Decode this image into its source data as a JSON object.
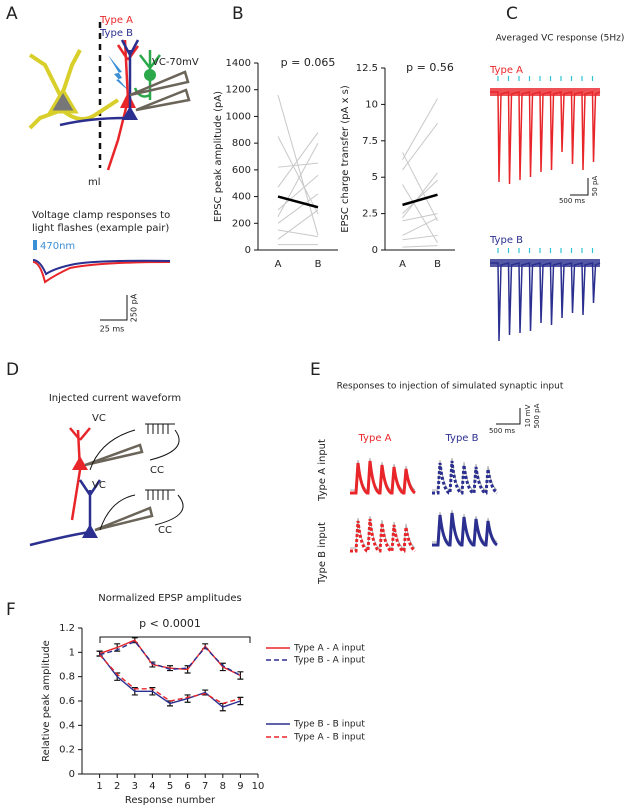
{
  "panel_a": {
    "label": "A",
    "type_a": "Type A",
    "type_b": "Type B",
    "electrode": "VC-70mV",
    "layer": "ml",
    "caption": [
      "Voltage clamp responses to",
      "light flashes (example pair)"
    ],
    "stimulus": "470nm",
    "scale_y": "250 pA",
    "scale_x": "25 ms"
  },
  "panel_b": {
    "label": "B"
  },
  "panel_c": {
    "label": "C",
    "title": "Averaged VC response (5Hz)",
    "type_a": "Type A",
    "type_b": "Type B",
    "scale_y": "50 pA",
    "scale_x": "500 ms"
  },
  "panel_d": {
    "label": "D",
    "title": "Injected current waveform",
    "vc_1": "VC",
    "cc_1": "CC",
    "vc_2": "VC",
    "cc_2": "CC"
  },
  "panel_e": {
    "label": "E",
    "title": "Responses to injection of simulated synaptic input",
    "type_a": "Type A",
    "type_b": "Type B",
    "scale_v": "10 mV",
    "scale_i": "500 pA",
    "scale_x": "500 ms",
    "row_a": "Type A input",
    "row_b": "Type B input"
  },
  "panel_f": {
    "label": "F"
  },
  "chart_data": [
    {
      "type": "paired",
      "title": "p = 0.065",
      "y_label": "EPSC peak amplitude (pA)",
      "categories": [
        "A",
        "B"
      ],
      "ylim": [
        0,
        1400
      ],
      "yticks": [
        0,
        200,
        400,
        600,
        800,
        1000,
        1200,
        1400
      ],
      "series": [
        {
          "color": "#c8c8c8",
          "values": [
            1160,
            110
          ]
        },
        {
          "color": "#c8c8c8",
          "values": [
            850,
            270
          ]
        },
        {
          "color": "#c8c8c8",
          "values": [
            620,
            650
          ]
        },
        {
          "color": "#c8c8c8",
          "values": [
            470,
            880
          ]
        },
        {
          "color": "#c8c8c8",
          "values": [
            300,
            560
          ]
        },
        {
          "color": "#c8c8c8",
          "values": [
            250,
            800
          ]
        },
        {
          "color": "#c8c8c8",
          "values": [
            200,
            420
          ]
        },
        {
          "color": "#c8c8c8",
          "values": [
            150,
            100
          ]
        },
        {
          "color": "#c8c8c8",
          "values": [
            80,
            300
          ]
        },
        {
          "color": "#c8c8c8",
          "values": [
            40,
            40
          ]
        },
        {
          "color": "#000000",
          "values": [
            400,
            320
          ]
        }
      ]
    },
    {
      "type": "paired",
      "title": "p = 0.56",
      "y_label": "EPSC charge transfer (pA x s)",
      "categories": [
        "A",
        "B"
      ],
      "ylim": [
        0,
        12.5
      ],
      "yticks": [
        0,
        2.5,
        5,
        7.5,
        10,
        12.5
      ],
      "series": [
        {
          "color": "#c8c8c8",
          "values": [
            6.7,
            2.0
          ]
        },
        {
          "color": "#c8c8c8",
          "values": [
            6.2,
            10.4
          ]
        },
        {
          "color": "#c8c8c8",
          "values": [
            5.5,
            8.7
          ]
        },
        {
          "color": "#c8c8c8",
          "values": [
            4.5,
            0.5
          ]
        },
        {
          "color": "#c8c8c8",
          "values": [
            2.5,
            4.8
          ]
        },
        {
          "color": "#c8c8c8",
          "values": [
            2.2,
            5.3
          ]
        },
        {
          "color": "#c8c8c8",
          "values": [
            2.0,
            2.5
          ]
        },
        {
          "color": "#c8c8c8",
          "values": [
            1.0,
            2.2
          ]
        },
        {
          "color": "#c8c8c8",
          "values": [
            0.7,
            1.0
          ]
        },
        {
          "color": "#c8c8c8",
          "values": [
            0.2,
            0.3
          ]
        },
        {
          "color": "#000000",
          "values": [
            3.1,
            3.8
          ]
        }
      ]
    },
    {
      "type": "line",
      "title": "Normalized EPSP amplitudes",
      "annotation": "p < 0.0001",
      "x_label": "Response number",
      "y_label": "Relative peak amplitude",
      "x": [
        1,
        2,
        3,
        4,
        5,
        6,
        7,
        8,
        9
      ],
      "xlim": [
        0,
        10
      ],
      "xticks": [
        1,
        2,
        3,
        4,
        5,
        6,
        7,
        8,
        9,
        10
      ],
      "ylim": [
        0,
        1.2
      ],
      "yticks": [
        0,
        0.2,
        0.4,
        0.6,
        0.8,
        1,
        1.2
      ],
      "legend": "right",
      "series": [
        {
          "name": "Type A - A input",
          "color": "#e8262a",
          "dash": "solid",
          "values": [
            0.99,
            1.04,
            1.1,
            0.9,
            0.87,
            0.86,
            1.05,
            0.88,
            0.81
          ],
          "errors": [
            0.02,
            0.03,
            0.02,
            0.02,
            0.02,
            0.03,
            0.02,
            0.03,
            0.03
          ]
        },
        {
          "name": "Type B - A input",
          "color": "#2b2f8f",
          "dash": "dashed",
          "values": [
            0.98,
            1.02,
            1.09,
            0.91,
            0.86,
            0.87,
            1.04,
            0.89,
            0.81
          ]
        },
        {
          "name": "Type B - B input",
          "color": "#2b2f8f",
          "dash": "solid",
          "values": [
            0.99,
            0.8,
            0.68,
            0.68,
            0.58,
            0.62,
            0.67,
            0.55,
            0.6
          ],
          "errors": [
            0.02,
            0.03,
            0.03,
            0.03,
            0.02,
            0.03,
            0.02,
            0.03,
            0.03
          ]
        },
        {
          "name": "Type A - B input",
          "color": "#e8262a",
          "dash": "dashed",
          "values": [
            0.98,
            0.82,
            0.7,
            0.7,
            0.6,
            0.63,
            0.66,
            0.58,
            0.62
          ]
        }
      ]
    }
  ]
}
